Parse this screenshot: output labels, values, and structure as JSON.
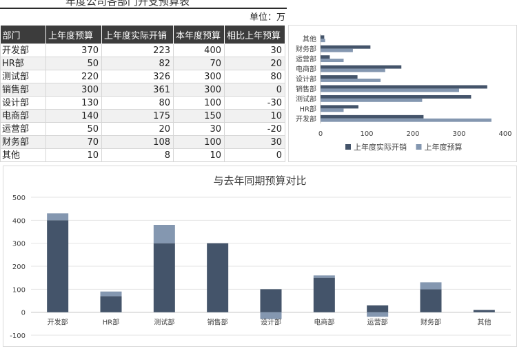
{
  "title": "年度公司各部门开支预算表",
  "unit": "单位：万",
  "table": {
    "headers": [
      "部门",
      "上年度预算",
      "上年度实际开销",
      "本年度预算",
      "相比上年预算"
    ],
    "rows": [
      {
        "dept": "开发部",
        "prev_budget": "370",
        "prev_actual": "223",
        "curr_budget": "400",
        "diff": "30"
      },
      {
        "dept": "HR部",
        "prev_budget": "50",
        "prev_actual": "82",
        "curr_budget": "70",
        "diff": "20"
      },
      {
        "dept": "测试部",
        "prev_budget": "220",
        "prev_actual": "326",
        "curr_budget": "300",
        "diff": "80"
      },
      {
        "dept": "销售部",
        "prev_budget": "300",
        "prev_actual": "361",
        "curr_budget": "300",
        "diff": "0"
      },
      {
        "dept": "设计部",
        "prev_budget": "130",
        "prev_actual": "80",
        "curr_budget": "100",
        "diff": "-30"
      },
      {
        "dept": "电商部",
        "prev_budget": "140",
        "prev_actual": "175",
        "curr_budget": "150",
        "diff": "10"
      },
      {
        "dept": "运营部",
        "prev_budget": "50",
        "prev_actual": "20",
        "curr_budget": "30",
        "diff": "-20"
      },
      {
        "dept": "财务部",
        "prev_budget": "70",
        "prev_actual": "108",
        "curr_budget": "100",
        "diff": "30"
      },
      {
        "dept": "其他",
        "prev_budget": "10",
        "prev_actual": "8",
        "curr_budget": "10",
        "diff": "0"
      }
    ]
  },
  "chart_data": [
    {
      "type": "bar",
      "orientation": "horizontal",
      "categories": [
        "开发部",
        "HR部",
        "测试部",
        "销售部",
        "设计部",
        "电商部",
        "运营部",
        "财务部",
        "其他"
      ],
      "series": [
        {
          "name": "上年度实际开销",
          "values": [
            223,
            82,
            326,
            361,
            80,
            175,
            20,
            108,
            8
          ],
          "color": "#44546a"
        },
        {
          "name": "上年度预算",
          "values": [
            370,
            50,
            220,
            300,
            130,
            140,
            50,
            70,
            10
          ],
          "color": "#8497b0"
        }
      ],
      "xlim": [
        0,
        400
      ],
      "xticks": [
        "0",
        "100",
        "200",
        "300",
        "400"
      ],
      "legend": "bottom"
    },
    {
      "type": "bar",
      "stacked": true,
      "title": "与去年同期预算对比",
      "categories": [
        "开发部",
        "HR部",
        "测试部",
        "销售部",
        "设计部",
        "电商部",
        "运营部",
        "财务部",
        "其他"
      ],
      "series": [
        {
          "values": [
            400,
            70,
            300,
            300,
            100,
            150,
            30,
            100,
            10
          ],
          "color": "#44546a"
        },
        {
          "values": [
            30,
            20,
            80,
            0,
            -30,
            10,
            -20,
            30,
            0
          ],
          "color": "#8497b0"
        }
      ],
      "ylim": [
        -100,
        500
      ],
      "yticks": [
        "500",
        "400",
        "300",
        "200",
        "100",
        "0",
        "-100"
      ],
      "grid": true
    }
  ]
}
